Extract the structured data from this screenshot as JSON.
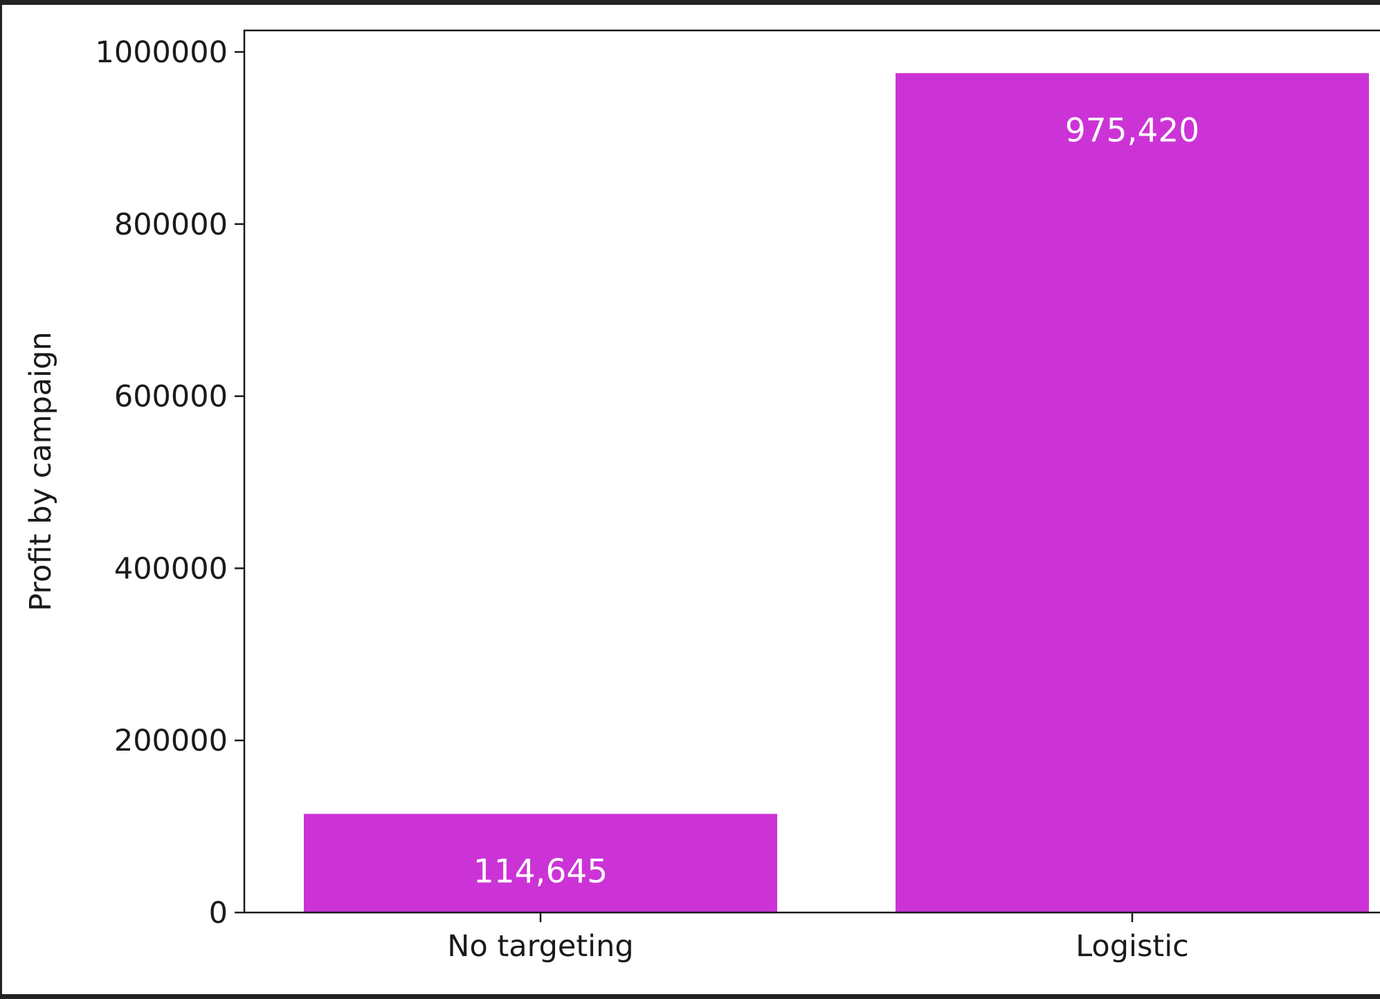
{
  "chart_data": {
    "type": "bar",
    "categories": [
      "No targeting",
      "Logistic"
    ],
    "values": [
      114645,
      975420
    ],
    "data_labels": [
      "114,645",
      "975,420"
    ],
    "ylabel": "Profit by campaign",
    "xlabel": "",
    "title": "",
    "ylim": [
      0,
      1025000
    ],
    "yticks": [
      0,
      200000,
      400000,
      600000,
      800000,
      1000000
    ],
    "ytick_labels": [
      "0",
      "200000",
      "400000",
      "600000",
      "800000",
      "1000000"
    ],
    "bar_color": "#cc33d6",
    "grid": false,
    "legend": "none"
  }
}
